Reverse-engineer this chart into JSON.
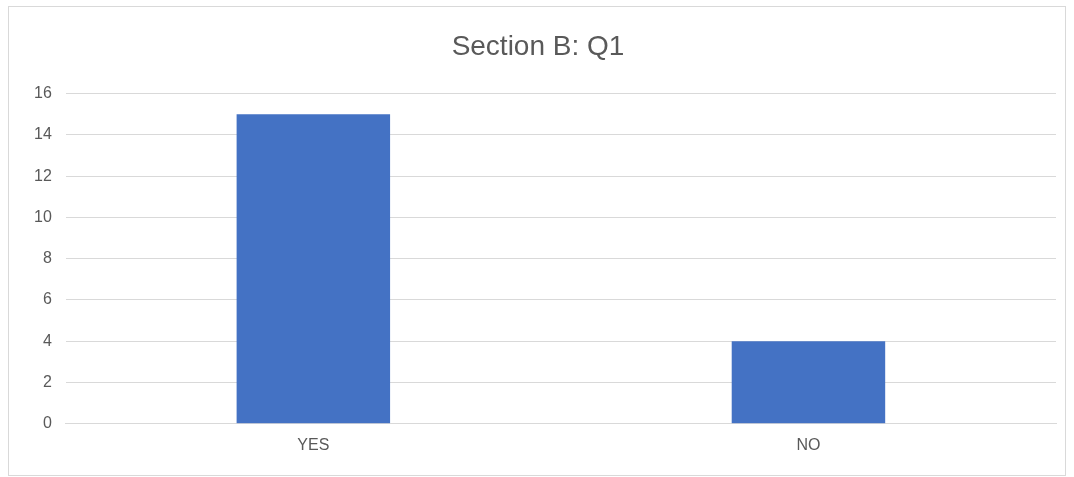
{
  "chart_data": {
    "type": "bar",
    "title": "Section B: Q1",
    "categories": [
      "YES",
      "NO"
    ],
    "values": [
      15,
      4
    ],
    "color": "#4472c4",
    "ylim": [
      0,
      16
    ],
    "yticks": [
      0,
      2,
      4,
      6,
      8,
      10,
      12,
      14,
      16
    ],
    "grid": "y"
  }
}
